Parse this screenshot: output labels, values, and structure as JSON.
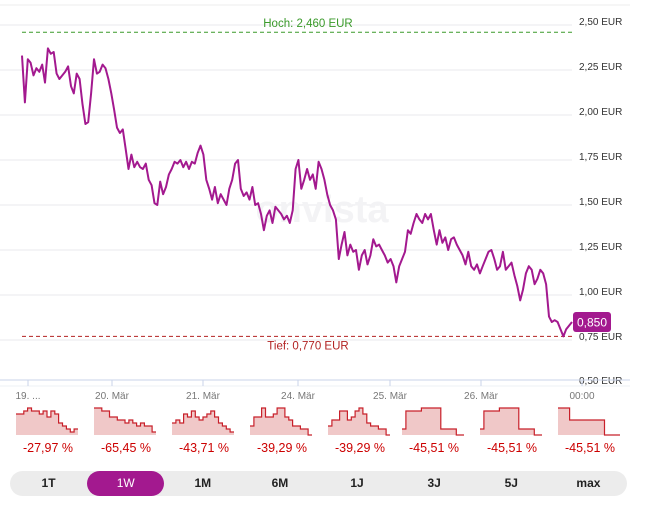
{
  "chart_data": {
    "type": "line",
    "y_ticks": [
      "2,50 EUR",
      "2,25 EUR",
      "2,00 EUR",
      "1,75 EUR",
      "1,50 EUR",
      "1,25 EUR",
      "1,00 EUR",
      "0,75 EUR",
      "0,50 EUR"
    ],
    "ylim": [
      0.5,
      2.5
    ],
    "x_ticks": [
      "19. ...",
      "20. Mär",
      "21. Mär",
      "24. Mär",
      "25. Mär",
      "26. Mär",
      "00:00"
    ],
    "high_label": "Hoch: 2,460 EUR",
    "high": 2.46,
    "low_label": "Tief: 0,770 EUR",
    "low": 0.77,
    "current_label": "0,850",
    "current": 0.85,
    "line_color": "#a3198f",
    "high_color": "#3a9a2a",
    "low_color": "#b22222",
    "values": [
      2.33,
      2.07,
      2.31,
      2.29,
      2.22,
      2.26,
      2.24,
      2.28,
      2.18,
      2.37,
      2.34,
      2.35,
      2.23,
      2.2,
      2.22,
      2.24,
      2.27,
      2.16,
      2.12,
      2.23,
      2.2,
      2.06,
      1.95,
      1.96,
      2.12,
      2.31,
      2.23,
      2.24,
      2.28,
      2.26,
      2.2,
      2.12,
      2.03,
      1.93,
      1.9,
      1.92,
      1.81,
      1.7,
      1.78,
      1.71,
      1.74,
      1.71,
      1.7,
      1.73,
      1.64,
      1.61,
      1.51,
      1.5,
      1.63,
      1.56,
      1.6,
      1.67,
      1.7,
      1.74,
      1.73,
      1.75,
      1.71,
      1.74,
      1.7,
      1.74,
      1.73,
      1.79,
      1.83,
      1.78,
      1.64,
      1.59,
      1.53,
      1.6,
      1.51,
      1.56,
      1.53,
      1.5,
      1.59,
      1.64,
      1.73,
      1.75,
      1.59,
      1.55,
      1.57,
      1.53,
      1.6,
      1.5,
      1.51,
      1.45,
      1.36,
      1.44,
      1.47,
      1.4,
      1.49,
      1.47,
      1.45,
      1.42,
      1.44,
      1.4,
      1.47,
      1.7,
      1.75,
      1.59,
      1.64,
      1.7,
      1.64,
      1.67,
      1.59,
      1.74,
      1.7,
      1.64,
      1.56,
      1.5,
      1.47,
      1.42,
      1.2,
      1.28,
      1.35,
      1.22,
      1.28,
      1.24,
      1.25,
      1.14,
      1.22,
      1.25,
      1.17,
      1.22,
      1.31,
      1.27,
      1.28,
      1.25,
      1.22,
      1.18,
      1.2,
      1.16,
      1.07,
      1.16,
      1.2,
      1.24,
      1.36,
      1.34,
      1.4,
      1.45,
      1.42,
      1.4,
      1.45,
      1.42,
      1.45,
      1.36,
      1.28,
      1.36,
      1.29,
      1.32,
      1.25,
      1.31,
      1.32,
      1.28,
      1.25,
      1.22,
      1.17,
      1.24,
      1.16,
      1.14,
      1.17,
      1.12,
      1.16,
      1.2,
      1.24,
      1.25,
      1.2,
      1.14,
      1.16,
      1.24,
      1.14,
      1.16,
      1.18,
      1.11,
      1.05,
      0.97,
      1.03,
      1.12,
      1.16,
      1.14,
      1.06,
      1.09,
      1.14,
      1.12,
      1.06,
      0.88,
      0.85,
      0.86,
      0.85,
      0.81,
      0.77,
      0.81,
      0.83,
      0.85
    ]
  },
  "sparklines": [
    {
      "pct": "-27,97 %",
      "values": [
        7,
        7,
        8,
        9,
        8,
        8,
        7,
        8,
        6,
        8,
        7,
        4,
        3,
        2,
        1,
        2
      ]
    },
    {
      "pct": "-65,45 %",
      "values": [
        9,
        9,
        8,
        8,
        6,
        6,
        5,
        5,
        4,
        5,
        4,
        3,
        4,
        3,
        3,
        1
      ]
    },
    {
      "pct": "-43,71 %",
      "values": [
        4,
        5,
        4,
        7,
        6,
        8,
        6,
        5,
        6,
        7,
        8,
        6,
        4,
        3,
        2,
        1
      ]
    },
    {
      "pct": "-39,29 %",
      "values": [
        3,
        6,
        6,
        9,
        6,
        6,
        7,
        9,
        9,
        6,
        5,
        3,
        3,
        2,
        2,
        0
      ]
    },
    {
      "pct": "-39,29 %",
      "values": [
        3,
        5,
        5,
        8,
        8,
        5,
        6,
        8,
        9,
        7,
        4,
        3,
        3,
        2,
        2,
        0
      ]
    },
    {
      "pct": "-45,51 %",
      "values": [
        2,
        8,
        8,
        8,
        8,
        9,
        9,
        9,
        9,
        9,
        2,
        2,
        2,
        2,
        0,
        0
      ]
    },
    {
      "pct": "-45,51 %",
      "values": [
        2,
        8,
        8,
        8,
        8,
        9,
        9,
        9,
        9,
        9,
        2,
        2,
        2,
        2,
        0,
        0
      ]
    },
    {
      "pct": "-45,51 %",
      "values": [
        9,
        9,
        9,
        5,
        5,
        5,
        5,
        5,
        5,
        5,
        5,
        5,
        0,
        0,
        0,
        0
      ]
    }
  ],
  "spark_color": "#c8202a",
  "spark_fill": "#f0c8c8",
  "periods": [
    {
      "label": "1T"
    },
    {
      "label": "1W",
      "active": true
    },
    {
      "label": "1M"
    },
    {
      "label": "6M"
    },
    {
      "label": "1J"
    },
    {
      "label": "3J"
    },
    {
      "label": "5J"
    },
    {
      "label": "max"
    }
  ]
}
